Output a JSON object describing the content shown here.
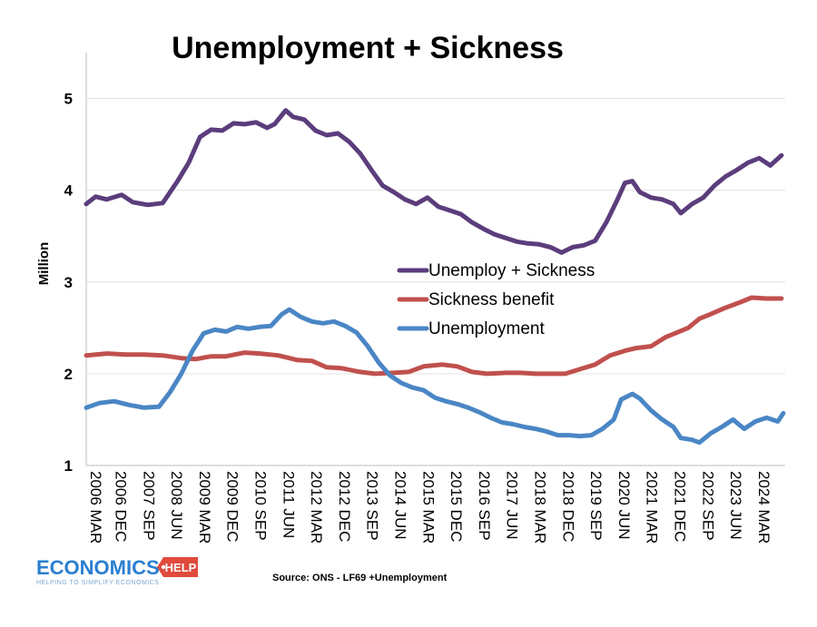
{
  "chart_data": {
    "type": "line",
    "title": "Unemployment + Sickness",
    "ylabel": "Million",
    "xlabel": "",
    "ylim": [
      1,
      5.5
    ],
    "yticks": [
      1,
      2,
      3,
      4,
      5
    ],
    "xlim": [
      2006.25,
      2025.0
    ],
    "grid": "horizontal",
    "legend_position": "center-right",
    "x_tick_labels": [
      {
        "x": 2006.25,
        "label": "2006 MAR"
      },
      {
        "x": 2006.92,
        "label": "2006 DEC"
      },
      {
        "x": 2007.67,
        "label": "2007 SEP"
      },
      {
        "x": 2008.42,
        "label": "2008 JUN"
      },
      {
        "x": 2009.17,
        "label": "2009 MAR"
      },
      {
        "x": 2009.92,
        "label": "2009 DEC"
      },
      {
        "x": 2010.67,
        "label": "2010 SEP"
      },
      {
        "x": 2011.42,
        "label": "2011 JUN"
      },
      {
        "x": 2012.17,
        "label": "2012 MAR"
      },
      {
        "x": 2012.92,
        "label": "2012 DEC"
      },
      {
        "x": 2013.67,
        "label": "2013 SEP"
      },
      {
        "x": 2014.42,
        "label": "2014 JUN"
      },
      {
        "x": 2015.17,
        "label": "2015 MAR"
      },
      {
        "x": 2015.92,
        "label": "2015 DEC"
      },
      {
        "x": 2016.67,
        "label": "2016 SEP"
      },
      {
        "x": 2017.42,
        "label": "2017 JUN"
      },
      {
        "x": 2018.17,
        "label": "2018 MAR"
      },
      {
        "x": 2018.92,
        "label": "2018 DEC"
      },
      {
        "x": 2019.67,
        "label": "2019 SEP"
      },
      {
        "x": 2020.42,
        "label": "2020 JUN"
      },
      {
        "x": 2021.17,
        "label": "2021 MAR"
      },
      {
        "x": 2021.92,
        "label": "2021 DEC"
      },
      {
        "x": 2022.67,
        "label": "2022 SEP"
      },
      {
        "x": 2023.42,
        "label": "2023 JUN"
      },
      {
        "x": 2024.17,
        "label": "2024 MAR"
      }
    ],
    "series": [
      {
        "name": "Unemploy + Sickness",
        "color": "#5b3d7c",
        "points": [
          [
            2006.25,
            3.85
          ],
          [
            2006.5,
            3.93
          ],
          [
            2006.8,
            3.9
          ],
          [
            2007.2,
            3.95
          ],
          [
            2007.5,
            3.87
          ],
          [
            2007.9,
            3.84
          ],
          [
            2008.3,
            3.86
          ],
          [
            2008.7,
            4.1
          ],
          [
            2009.0,
            4.3
          ],
          [
            2009.3,
            4.58
          ],
          [
            2009.6,
            4.66
          ],
          [
            2009.9,
            4.65
          ],
          [
            2010.2,
            4.73
          ],
          [
            2010.5,
            4.72
          ],
          [
            2010.8,
            4.74
          ],
          [
            2011.1,
            4.68
          ],
          [
            2011.3,
            4.72
          ],
          [
            2011.6,
            4.87
          ],
          [
            2011.8,
            4.8
          ],
          [
            2012.1,
            4.77
          ],
          [
            2012.4,
            4.65
          ],
          [
            2012.7,
            4.6
          ],
          [
            2013.0,
            4.62
          ],
          [
            2013.3,
            4.53
          ],
          [
            2013.6,
            4.4
          ],
          [
            2013.9,
            4.22
          ],
          [
            2014.2,
            4.05
          ],
          [
            2014.5,
            3.98
          ],
          [
            2014.8,
            3.9
          ],
          [
            2015.1,
            3.85
          ],
          [
            2015.4,
            3.92
          ],
          [
            2015.7,
            3.82
          ],
          [
            2016.0,
            3.78
          ],
          [
            2016.3,
            3.74
          ],
          [
            2016.6,
            3.65
          ],
          [
            2016.9,
            3.58
          ],
          [
            2017.2,
            3.52
          ],
          [
            2017.5,
            3.48
          ],
          [
            2017.8,
            3.44
          ],
          [
            2018.1,
            3.42
          ],
          [
            2018.4,
            3.41
          ],
          [
            2018.7,
            3.38
          ],
          [
            2019.0,
            3.32
          ],
          [
            2019.3,
            3.38
          ],
          [
            2019.6,
            3.4
          ],
          [
            2019.9,
            3.45
          ],
          [
            2020.2,
            3.65
          ],
          [
            2020.5,
            3.9
          ],
          [
            2020.7,
            4.08
          ],
          [
            2020.9,
            4.1
          ],
          [
            2021.1,
            3.98
          ],
          [
            2021.4,
            3.92
          ],
          [
            2021.7,
            3.9
          ],
          [
            2022.0,
            3.85
          ],
          [
            2022.2,
            3.75
          ],
          [
            2022.5,
            3.85
          ],
          [
            2022.8,
            3.92
          ],
          [
            2023.1,
            4.05
          ],
          [
            2023.4,
            4.15
          ],
          [
            2023.7,
            4.22
          ],
          [
            2024.0,
            4.3
          ],
          [
            2024.3,
            4.35
          ],
          [
            2024.6,
            4.27
          ],
          [
            2024.9,
            4.38
          ]
        ]
      },
      {
        "name": "Sickness benefit",
        "color": "#c0504d",
        "points": [
          [
            2006.25,
            2.2
          ],
          [
            2006.8,
            2.22
          ],
          [
            2007.3,
            2.21
          ],
          [
            2007.8,
            2.21
          ],
          [
            2008.3,
            2.2
          ],
          [
            2008.8,
            2.17
          ],
          [
            2009.2,
            2.16
          ],
          [
            2009.6,
            2.19
          ],
          [
            2010.0,
            2.19
          ],
          [
            2010.5,
            2.23
          ],
          [
            2010.9,
            2.22
          ],
          [
            2011.4,
            2.2
          ],
          [
            2011.9,
            2.15
          ],
          [
            2012.3,
            2.14
          ],
          [
            2012.7,
            2.07
          ],
          [
            2013.1,
            2.06
          ],
          [
            2013.6,
            2.02
          ],
          [
            2014.0,
            2.0
          ],
          [
            2014.5,
            2.01
          ],
          [
            2014.9,
            2.02
          ],
          [
            2015.3,
            2.08
          ],
          [
            2015.8,
            2.1
          ],
          [
            2016.2,
            2.08
          ],
          [
            2016.6,
            2.02
          ],
          [
            2017.0,
            2.0
          ],
          [
            2017.5,
            2.01
          ],
          [
            2017.9,
            2.01
          ],
          [
            2018.3,
            2.0
          ],
          [
            2018.7,
            2.0
          ],
          [
            2019.1,
            2.0
          ],
          [
            2019.5,
            2.05
          ],
          [
            2019.9,
            2.1
          ],
          [
            2020.3,
            2.2
          ],
          [
            2020.7,
            2.25
          ],
          [
            2021.0,
            2.28
          ],
          [
            2021.4,
            2.3
          ],
          [
            2021.8,
            2.4
          ],
          [
            2022.1,
            2.45
          ],
          [
            2022.4,
            2.5
          ],
          [
            2022.7,
            2.6
          ],
          [
            2023.0,
            2.65
          ],
          [
            2023.4,
            2.72
          ],
          [
            2023.8,
            2.78
          ],
          [
            2024.1,
            2.83
          ],
          [
            2024.5,
            2.82
          ],
          [
            2024.9,
            2.82
          ]
        ]
      },
      {
        "name": "Unemployment",
        "color": "#4a86c5",
        "points": [
          [
            2006.25,
            1.63
          ],
          [
            2006.6,
            1.68
          ],
          [
            2007.0,
            1.7
          ],
          [
            2007.4,
            1.66
          ],
          [
            2007.8,
            1.63
          ],
          [
            2008.2,
            1.64
          ],
          [
            2008.5,
            1.8
          ],
          [
            2008.8,
            2.0
          ],
          [
            2009.1,
            2.25
          ],
          [
            2009.4,
            2.44
          ],
          [
            2009.7,
            2.48
          ],
          [
            2010.0,
            2.46
          ],
          [
            2010.3,
            2.51
          ],
          [
            2010.6,
            2.49
          ],
          [
            2010.9,
            2.51
          ],
          [
            2011.2,
            2.52
          ],
          [
            2011.5,
            2.65
          ],
          [
            2011.7,
            2.7
          ],
          [
            2012.0,
            2.62
          ],
          [
            2012.3,
            2.57
          ],
          [
            2012.6,
            2.55
          ],
          [
            2012.9,
            2.57
          ],
          [
            2013.2,
            2.52
          ],
          [
            2013.5,
            2.45
          ],
          [
            2013.8,
            2.3
          ],
          [
            2014.1,
            2.12
          ],
          [
            2014.4,
            1.98
          ],
          [
            2014.7,
            1.9
          ],
          [
            2015.0,
            1.85
          ],
          [
            2015.3,
            1.82
          ],
          [
            2015.6,
            1.74
          ],
          [
            2015.9,
            1.7
          ],
          [
            2016.2,
            1.67
          ],
          [
            2016.5,
            1.63
          ],
          [
            2016.8,
            1.58
          ],
          [
            2017.1,
            1.52
          ],
          [
            2017.4,
            1.47
          ],
          [
            2017.7,
            1.45
          ],
          [
            2018.0,
            1.42
          ],
          [
            2018.3,
            1.4
          ],
          [
            2018.6,
            1.37
          ],
          [
            2018.9,
            1.33
          ],
          [
            2019.2,
            1.33
          ],
          [
            2019.5,
            1.32
          ],
          [
            2019.8,
            1.33
          ],
          [
            2020.1,
            1.4
          ],
          [
            2020.4,
            1.5
          ],
          [
            2020.6,
            1.72
          ],
          [
            2020.9,
            1.78
          ],
          [
            2021.1,
            1.73
          ],
          [
            2021.4,
            1.6
          ],
          [
            2021.7,
            1.5
          ],
          [
            2022.0,
            1.42
          ],
          [
            2022.2,
            1.3
          ],
          [
            2022.5,
            1.28
          ],
          [
            2022.7,
            1.25
          ],
          [
            2023.0,
            1.35
          ],
          [
            2023.3,
            1.42
          ],
          [
            2023.6,
            1.5
          ],
          [
            2023.9,
            1.4
          ],
          [
            2024.2,
            1.48
          ],
          [
            2024.5,
            1.52
          ],
          [
            2024.8,
            1.48
          ],
          [
            2024.95,
            1.57
          ]
        ]
      }
    ],
    "source": "Source: ONS - LF69 +Unemployment"
  },
  "logo": {
    "main": "ECONOMICS",
    "badge": "HELP",
    "tagline": "HELPING TO SIMPLIFY ECONOMICS",
    "main_color": "#2a7fd0",
    "badge_color": "#e04a3c"
  }
}
